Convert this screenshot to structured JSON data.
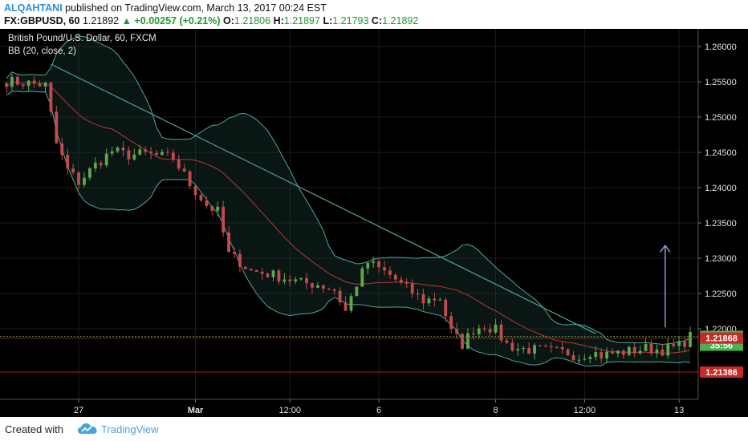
{
  "header": {
    "author": "ALQAHTANI",
    "published": " published on TradingView.com, March 13, 2017 00:24 EST",
    "symbol": "FX:GBPUSD, 60",
    "price": "1.21892",
    "change": "+0.00257 (+0.21%)",
    "ohlc": [
      {
        "k": "O:",
        "v": "1.21806"
      },
      {
        "k": "H:",
        "v": "1.21897"
      },
      {
        "k": "L:",
        "v": "1.21793"
      },
      {
        "k": "C:",
        "v": "1.21892"
      }
    ]
  },
  "legend": {
    "title": "British Pound/U.S. Dollar, 60, FXCM",
    "indicator": "BB (20, close, 2)"
  },
  "footer": {
    "created": "Created with",
    "brand": "TradingView"
  },
  "colors": {
    "background": "#000000",
    "up_candle": "#5fa84a",
    "down_candle": "#c44b4b",
    "bb_band": "#4fa59a",
    "bb_basis": "#b53a3a",
    "trendline": "#4fa59a",
    "current_price": "#4caf50",
    "support_line": "#c82828",
    "arrow": "#8fa9d6"
  },
  "chart_data": {
    "type": "candlestick",
    "symbol": "GBPUSD",
    "interval": "60",
    "ylim": [
      1.21,
      1.2625
    ],
    "y_ticks": [
      "1.26000",
      "1.25500",
      "1.25000",
      "1.24500",
      "1.24000",
      "1.23500",
      "1.23000",
      "1.22500",
      "1.22000"
    ],
    "x_ticks": [
      "27",
      "Mar",
      "12:00",
      "6",
      "8",
      "12:00",
      "13"
    ],
    "x_tick_values": [
      13,
      34,
      51,
      67,
      88,
      104,
      121
    ],
    "n_bars": 124,
    "close_path": [
      [
        0,
        1.2551
      ],
      [
        4,
        1.2548
      ],
      [
        7,
        1.2545
      ],
      [
        9,
        1.2462
      ],
      [
        11,
        1.2425
      ],
      [
        13,
        1.2408
      ],
      [
        16,
        1.2432
      ],
      [
        19,
        1.2452
      ],
      [
        22,
        1.2446
      ],
      [
        25,
        1.2448
      ],
      [
        28,
        1.2444
      ],
      [
        30,
        1.2442
      ],
      [
        33,
        1.2405
      ],
      [
        36,
        1.2375
      ],
      [
        38,
        1.2366
      ],
      [
        40,
        1.2305
      ],
      [
        42,
        1.2295
      ],
      [
        44,
        1.2282
      ],
      [
        47,
        1.2278
      ],
      [
        50,
        1.2272
      ],
      [
        53,
        1.2265
      ],
      [
        56,
        1.2263
      ],
      [
        59,
        1.2255
      ],
      [
        61,
        1.2225
      ],
      [
        63,
        1.2264
      ],
      [
        65,
        1.2294
      ],
      [
        67,
        1.2285
      ],
      [
        69,
        1.2276
      ],
      [
        72,
        1.2257
      ],
      [
        75,
        1.224
      ],
      [
        78,
        1.2244
      ],
      [
        80,
        1.2195
      ],
      [
        82,
        1.2178
      ],
      [
        84,
        1.2199
      ],
      [
        86,
        1.2205
      ],
      [
        88,
        1.2198
      ],
      [
        90,
        1.2178
      ],
      [
        92,
        1.2172
      ],
      [
        95,
        1.217
      ],
      [
        98,
        1.2168
      ],
      [
        101,
        1.2166
      ],
      [
        103,
        1.216
      ],
      [
        105,
        1.2168
      ],
      [
        107,
        1.2162
      ],
      [
        109,
        1.2165
      ],
      [
        112,
        1.2168
      ],
      [
        115,
        1.2172
      ],
      [
        118,
        1.217
      ],
      [
        121,
        1.2175
      ],
      [
        123,
        1.2189
      ]
    ],
    "trendline": {
      "from": [
        8,
        1.2575
      ],
      "to": [
        106,
        1.2193
      ]
    },
    "arrow": {
      "x": 118.5,
      "from": 1.2202,
      "to": 1.2318
    },
    "price_lines": [
      {
        "label": "1.21892",
        "value": 1.21892,
        "color": "#4caf50"
      },
      {
        "label": "35:56",
        "value": 1.21766,
        "color": "#4caf50"
      },
      {
        "label": "1.21868",
        "value": 1.21868,
        "color": "#c82828"
      },
      {
        "label": "1.21386",
        "value": 1.21386,
        "color": "#c82828"
      }
    ],
    "bb": {
      "period": 20,
      "source": "close",
      "mult": 2
    }
  }
}
